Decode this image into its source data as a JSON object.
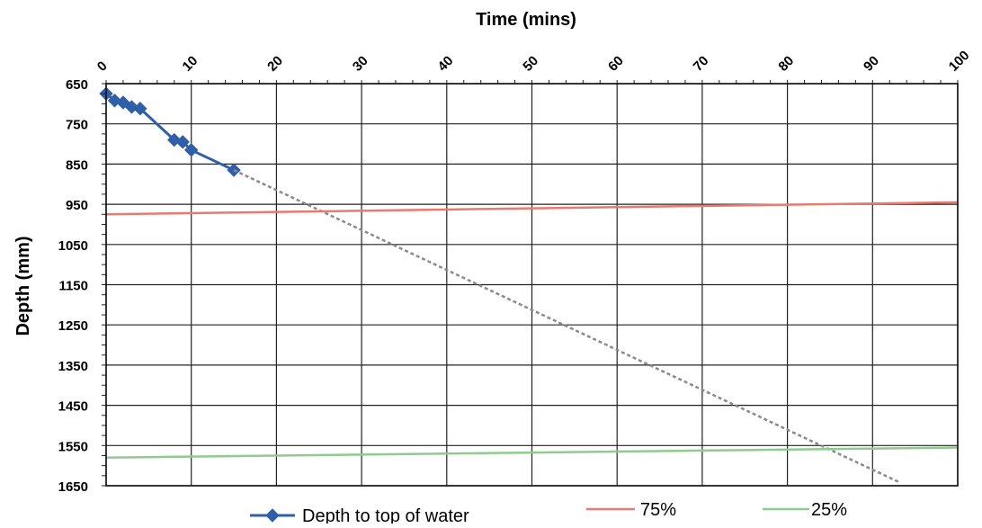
{
  "chart_data": {
    "type": "line",
    "xlabel": "Time (mins)",
    "ylabel": "Depth (mm)",
    "x_axis_position": "top",
    "y_axis_reversed": true,
    "xlim": [
      0,
      100
    ],
    "ylim": [
      650,
      1650
    ],
    "x_ticks": [
      "0",
      "10",
      "20",
      "30",
      "40",
      "50",
      "60",
      "70",
      "80",
      "90",
      "100"
    ],
    "y_ticks": [
      "650",
      "750",
      "850",
      "950",
      "1050",
      "1150",
      "1250",
      "1350",
      "1450",
      "1550",
      "1650"
    ],
    "grid": true,
    "series": [
      {
        "name": "Depth to top of water",
        "color": "#2e5fa8",
        "marker": "diamond",
        "x": [
          0,
          1,
          2,
          3,
          4,
          8,
          9,
          10,
          15
        ],
        "y": [
          675,
          692,
          697,
          708,
          712,
          790,
          795,
          815,
          865
        ]
      },
      {
        "name": "",
        "style": "dashed",
        "color": "#8a8a8a",
        "x": [
          15,
          93
        ],
        "y": [
          865,
          1640
        ]
      },
      {
        "name": "75%",
        "color": "#e87a6e",
        "x": [
          0,
          100
        ],
        "y": [
          975,
          945
        ]
      },
      {
        "name": "25%",
        "color": "#8dcc8e",
        "x": [
          0,
          100
        ],
        "y": [
          1580,
          1555
        ]
      }
    ],
    "legend": [
      {
        "label": "Depth to top of water",
        "color": "#2e5fa8",
        "marker": "diamond"
      },
      {
        "label": "75%",
        "color": "#e87a6e"
      },
      {
        "label": "25%",
        "color": "#8dcc8e"
      }
    ],
    "legend_position": "bottom"
  }
}
